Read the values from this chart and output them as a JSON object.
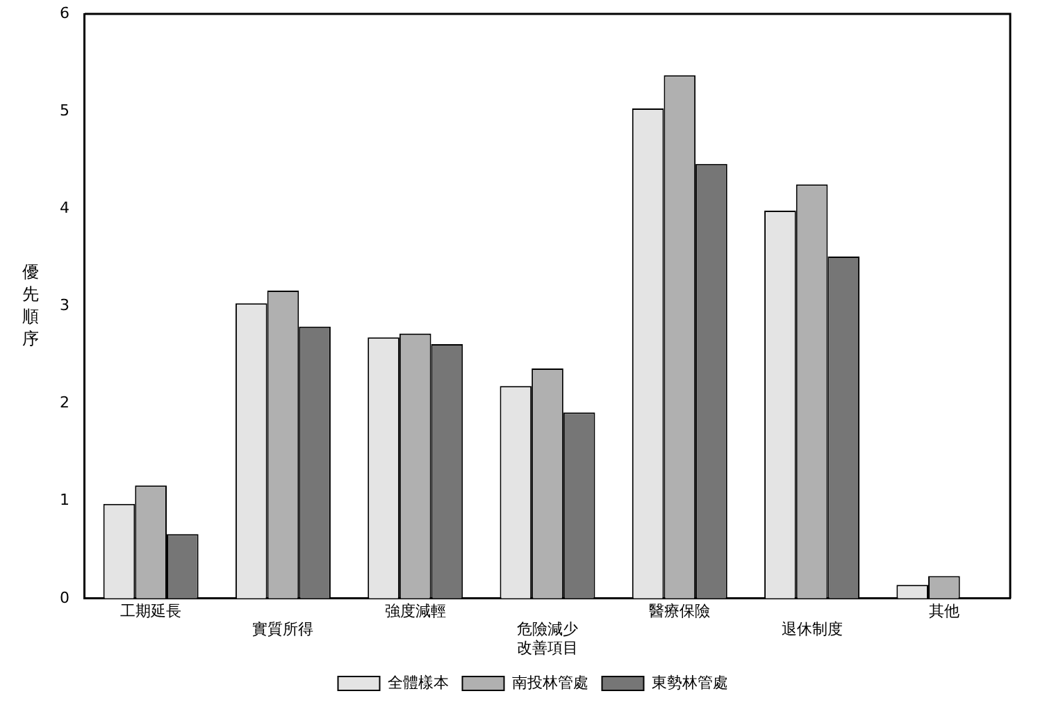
{
  "chart_data": {
    "type": "bar",
    "ylabel": "優先順序",
    "categories": [
      "工期延長",
      "實質所得",
      "強度減輕",
      "危險減少改善項目",
      "醫療保險",
      "退休制度",
      "其他"
    ],
    "series": [
      {
        "name": "全體樣本",
        "color": "#e4e4e4",
        "values": [
          0.97,
          3.03,
          2.68,
          2.18,
          5.03,
          3.98,
          0.14
        ]
      },
      {
        "name": "南投林管處",
        "color": "#b0b0b0",
        "values": [
          1.16,
          3.16,
          2.72,
          2.36,
          5.37,
          4.25,
          0.23
        ]
      },
      {
        "name": "東勢林管處",
        "color": "#767676",
        "values": [
          0.66,
          2.79,
          2.61,
          1.91,
          4.46,
          3.51,
          0
        ]
      }
    ],
    "ylim": [
      0,
      6
    ],
    "yticks": [
      0,
      1,
      2,
      3,
      4,
      5,
      6
    ],
    "grid": false,
    "legend": "bottom"
  }
}
